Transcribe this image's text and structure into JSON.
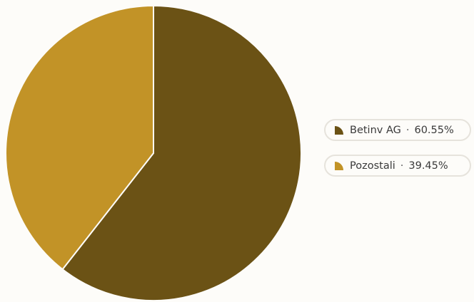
{
  "chart_data": {
    "type": "pie",
    "title": "",
    "slices": [
      {
        "label": "Betinv AG",
        "value": 60.55,
        "value_text": "60.55%",
        "color": "#6b5215"
      },
      {
        "label": "Pozostali",
        "value": 39.45,
        "value_text": "39.45%",
        "color": "#c29327"
      }
    ],
    "legend_position": "right",
    "separator": "·",
    "start_angle": "top, clockwise"
  }
}
